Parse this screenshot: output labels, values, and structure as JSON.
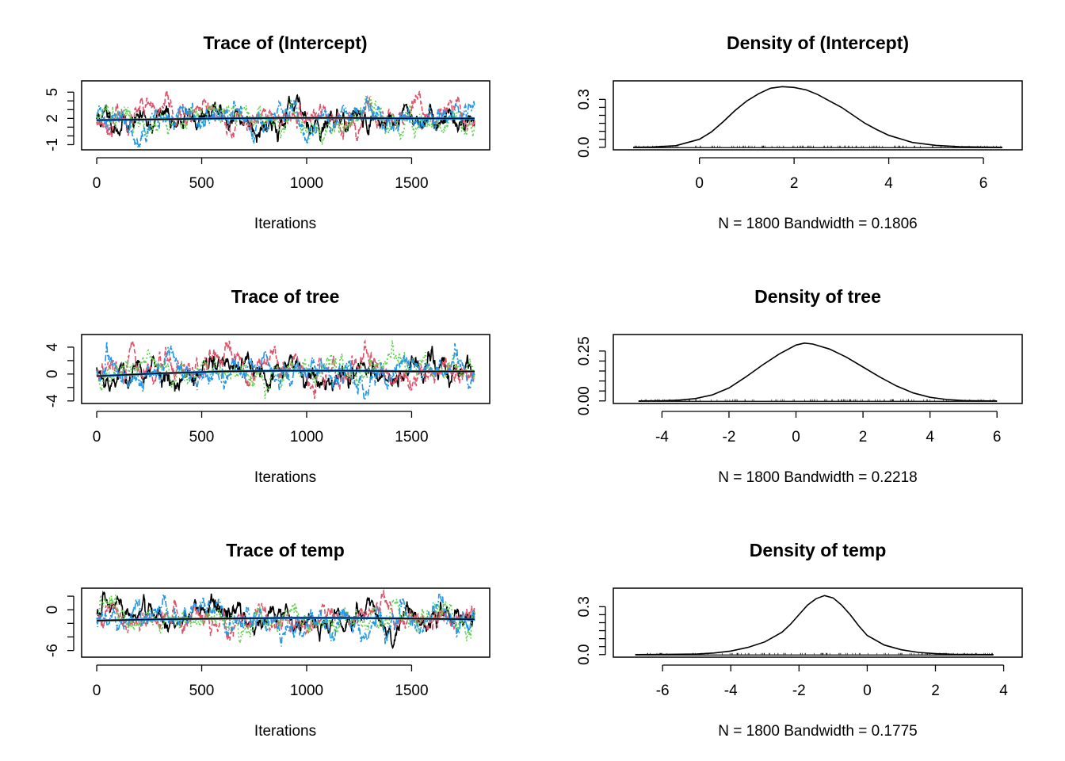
{
  "chart_data": [
    {
      "type": "line",
      "panel": "trace",
      "title": "Trace of (Intercept)",
      "xlabel": "Iterations",
      "ylabel": "",
      "xlim": [
        0,
        1800
      ],
      "ylim": [
        -1.3,
        6.0
      ],
      "x_ticks": [
        0,
        500,
        1000,
        1500
      ],
      "x_tick_labels": [
        "0",
        "500",
        "1000",
        "1500"
      ],
      "y_ticks": [
        -1,
        2,
        5
      ],
      "y_tick_labels": [
        "-1",
        "2",
        "5"
      ],
      "y_minor_ticks": [
        0,
        1,
        3,
        4
      ],
      "n_iterations": 1800,
      "chains": [
        {
          "name": "chain 1",
          "color": "#000000",
          "center": 2.0,
          "spread": 1.0,
          "seed": 11
        },
        {
          "name": "chain 2",
          "color": "#DF536B",
          "center": 2.0,
          "spread": 1.0,
          "seed": 23
        },
        {
          "name": "chain 3",
          "color": "#61D04F",
          "center": 2.05,
          "spread": 1.0,
          "seed": 37
        },
        {
          "name": "chain 4",
          "color": "#2297E6",
          "center": 1.95,
          "spread": 1.0,
          "seed": 41
        }
      ],
      "running_mean": {
        "x": [
          0,
          300,
          600,
          900,
          1200,
          1500,
          1800
        ],
        "y": [
          1.8,
          1.9,
          2.0,
          2.05,
          2.05,
          2.0,
          2.0
        ]
      }
    },
    {
      "type": "line",
      "panel": "density",
      "title": "Density of (Intercept)",
      "xlabel": "N = 1800   Bandwidth = 0.1806",
      "ylabel": "",
      "xlim": [
        -1.5,
        6.5
      ],
      "ylim": [
        0,
        0.4
      ],
      "x_ticks": [
        0,
        2,
        4,
        6
      ],
      "x_tick_labels": [
        "0",
        "2",
        "4",
        "6"
      ],
      "y_ticks": [
        0.0,
        0.3
      ],
      "y_tick_labels": [
        "0.0",
        "0.3"
      ],
      "y_minor_ticks": [
        0.05,
        0.1,
        0.15,
        0.2,
        0.25
      ],
      "x": [
        -1.4,
        -1.0,
        -0.5,
        0.0,
        0.25,
        0.5,
        0.75,
        1.0,
        1.25,
        1.5,
        1.75,
        2.0,
        2.25,
        2.5,
        2.75,
        3.0,
        3.25,
        3.5,
        3.75,
        4.0,
        4.5,
        5.0,
        5.5,
        6.0,
        6.4
      ],
      "y": [
        0.0,
        0.002,
        0.01,
        0.05,
        0.095,
        0.16,
        0.23,
        0.29,
        0.335,
        0.37,
        0.38,
        0.375,
        0.36,
        0.33,
        0.29,
        0.25,
        0.2,
        0.15,
        0.11,
        0.075,
        0.03,
        0.012,
        0.004,
        0.001,
        0.0
      ]
    },
    {
      "type": "line",
      "panel": "trace",
      "title": "Trace of tree",
      "xlabel": "Iterations",
      "ylabel": "",
      "xlim": [
        0,
        1800
      ],
      "ylim": [
        -4.0,
        5.5
      ],
      "x_ticks": [
        0,
        500,
        1000,
        1500
      ],
      "x_tick_labels": [
        "0",
        "500",
        "1000",
        "1500"
      ],
      "y_ticks": [
        -4,
        0,
        4
      ],
      "y_tick_labels": [
        "-4",
        "0",
        "4"
      ],
      "y_minor_ticks": [
        -2,
        2
      ],
      "n_iterations": 1800,
      "chains": [
        {
          "name": "chain 1",
          "color": "#000000",
          "center": 0.3,
          "spread": 1.35,
          "seed": 53
        },
        {
          "name": "chain 2",
          "color": "#DF536B",
          "center": 0.2,
          "spread": 1.35,
          "seed": 67
        },
        {
          "name": "chain 3",
          "color": "#61D04F",
          "center": 0.4,
          "spread": 1.3,
          "seed": 71
        },
        {
          "name": "chain 4",
          "color": "#2297E6",
          "center": 0.2,
          "spread": 1.35,
          "seed": 83
        }
      ],
      "running_mean": {
        "x": [
          0,
          300,
          600,
          900,
          1200,
          1500,
          1800
        ],
        "y": [
          -0.3,
          0.1,
          0.4,
          0.5,
          0.5,
          0.4,
          0.4
        ]
      }
    },
    {
      "type": "line",
      "panel": "density",
      "title": "Density of tree",
      "xlabel": "N = 1800   Bandwidth = 0.2218",
      "ylabel": "",
      "xlim": [
        -5.0,
        6.3
      ],
      "ylim": [
        0,
        0.32
      ],
      "x_ticks": [
        -4,
        -2,
        0,
        2,
        4,
        6
      ],
      "x_tick_labels": [
        "-4",
        "-2",
        "0",
        "2",
        "4",
        "6"
      ],
      "y_ticks": [
        0.0,
        0.25
      ],
      "y_tick_labels": [
        "0.00",
        "0.25"
      ],
      "y_minor_ticks": [
        0.05,
        0.1,
        0.15,
        0.2
      ],
      "x": [
        -4.7,
        -4.0,
        -3.5,
        -3.0,
        -2.5,
        -2.0,
        -1.5,
        -1.0,
        -0.5,
        0.0,
        0.25,
        0.5,
        1.0,
        1.5,
        2.0,
        2.5,
        3.0,
        3.5,
        4.0,
        4.5,
        5.0,
        5.5,
        6.0
      ],
      "y": [
        0.0,
        0.001,
        0.004,
        0.012,
        0.03,
        0.065,
        0.12,
        0.18,
        0.235,
        0.28,
        0.29,
        0.285,
        0.26,
        0.22,
        0.17,
        0.12,
        0.075,
        0.04,
        0.018,
        0.007,
        0.002,
        0.0005,
        0.0
      ]
    },
    {
      "type": "line",
      "panel": "trace",
      "title": "Trace of temp",
      "xlabel": "Iterations",
      "ylabel": "",
      "xlim": [
        0,
        1800
      ],
      "ylim": [
        -6.6,
        2.8
      ],
      "x_ticks": [
        0,
        500,
        1000,
        1500
      ],
      "x_tick_labels": [
        "0",
        "500",
        "1000",
        "1500"
      ],
      "y_ticks": [
        -6,
        0
      ],
      "y_tick_labels": [
        "-6",
        "0"
      ],
      "y_minor_ticks": [
        -4,
        -2,
        2
      ],
      "n_iterations": 1800,
      "chains": [
        {
          "name": "chain 1",
          "color": "#000000",
          "center": -1.2,
          "spread": 1.3,
          "seed": 97
        },
        {
          "name": "chain 2",
          "color": "#DF536B",
          "center": -1.3,
          "spread": 1.3,
          "seed": 101
        },
        {
          "name": "chain 3",
          "color": "#61D04F",
          "center": -1.2,
          "spread": 1.3,
          "seed": 113
        },
        {
          "name": "chain 4",
          "color": "#2297E6",
          "center": -1.4,
          "spread": 1.3,
          "seed": 127
        }
      ],
      "running_mean": {
        "x": [
          0,
          300,
          600,
          900,
          1200,
          1500,
          1800
        ],
        "y": [
          -1.6,
          -1.4,
          -1.3,
          -1.2,
          -1.2,
          -1.3,
          -1.4
        ]
      }
    },
    {
      "type": "line",
      "panel": "density",
      "title": "Density of temp",
      "xlabel": "N = 1800   Bandwidth = 0.1775",
      "ylabel": "",
      "xlim": [
        -7.0,
        4.1
      ],
      "ylim": [
        0,
        0.4
      ],
      "x_ticks": [
        -6,
        -4,
        -2,
        0,
        2,
        4
      ],
      "x_tick_labels": [
        "-6",
        "-4",
        "-2",
        "0",
        "2",
        "4"
      ],
      "y_ticks": [
        0.0,
        0.3
      ],
      "y_tick_labels": [
        "0.0",
        "0.3"
      ],
      "y_minor_ticks": [
        0.05,
        0.1,
        0.15,
        0.2,
        0.25
      ],
      "x": [
        -6.8,
        -6.0,
        -5.0,
        -4.5,
        -4.0,
        -3.5,
        -3.0,
        -2.5,
        -2.25,
        -2.0,
        -1.75,
        -1.5,
        -1.25,
        -1.0,
        -0.75,
        -0.5,
        -0.25,
        0.0,
        0.5,
        1.0,
        1.5,
        2.0,
        2.5,
        3.0,
        3.7
      ],
      "y": [
        0.0,
        0.001,
        0.004,
        0.01,
        0.022,
        0.045,
        0.08,
        0.14,
        0.19,
        0.25,
        0.31,
        0.35,
        0.37,
        0.355,
        0.31,
        0.25,
        0.18,
        0.12,
        0.06,
        0.03,
        0.014,
        0.006,
        0.002,
        0.0008,
        0.0
      ]
    }
  ]
}
